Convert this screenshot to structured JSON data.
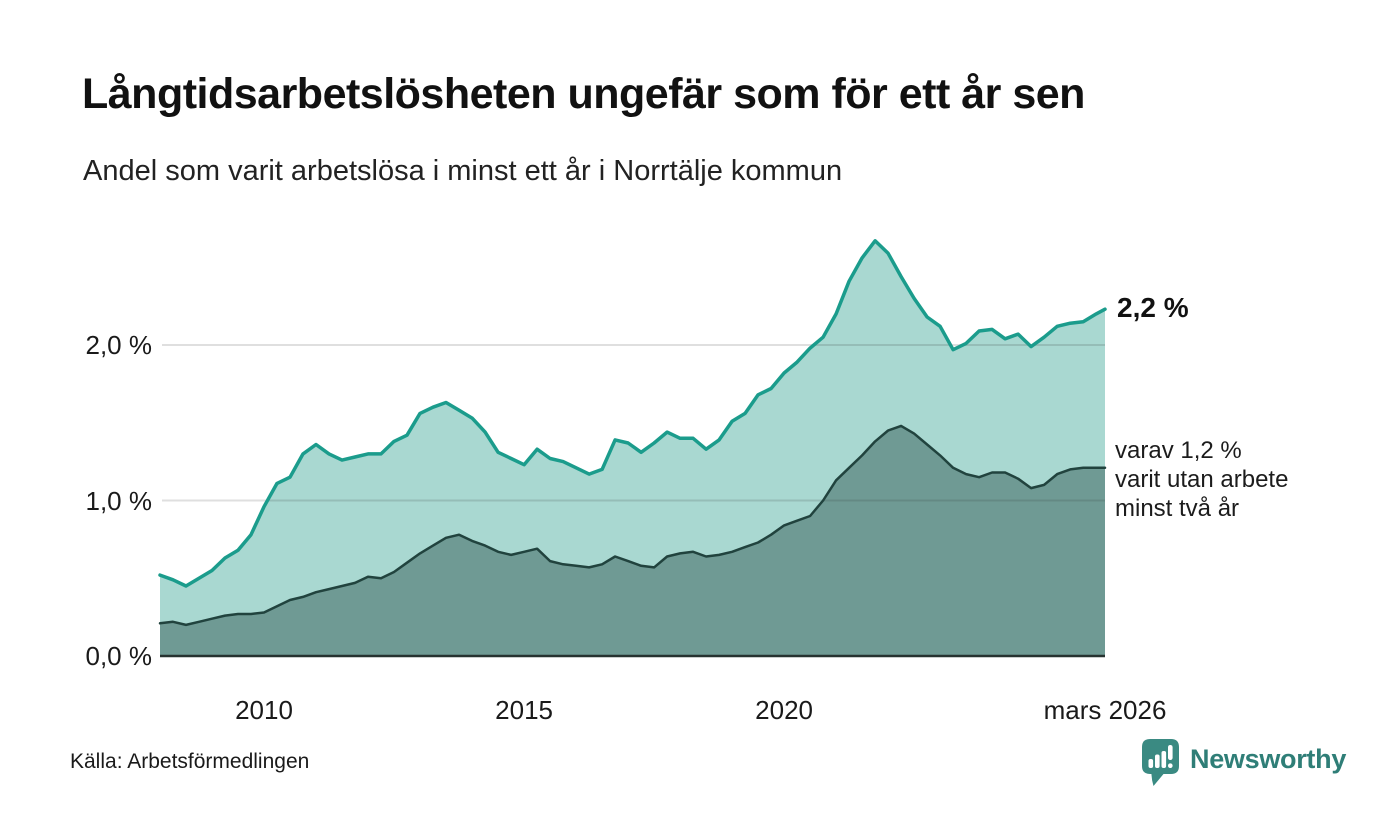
{
  "header": {
    "title": "Långtidsarbetslösheten ungefär som för ett år sen",
    "subtitle": "Andel som varit arbetslösa i minst ett år i Norrtälje kommun"
  },
  "chart_data": {
    "type": "area",
    "title": "Långtidsarbetslösheten ungefär som för ett år sen",
    "subtitle": "Andel som varit arbetslösa i minst ett år i Norrtälje kommun",
    "x_unit": "decimal_year_monthly_series",
    "xlim": [
      2008,
      2026.17
    ],
    "ylim": [
      0,
      2.8
    ],
    "grid": "horizontal",
    "legend_position": "direct-end-labels",
    "x": [
      2008,
      2008.25,
      2008.5,
      2008.75,
      2009,
      2009.25,
      2009.5,
      2009.75,
      2010,
      2010.25,
      2010.5,
      2010.75,
      2011,
      2011.25,
      2011.5,
      2011.75,
      2012,
      2012.25,
      2012.5,
      2012.75,
      2013,
      2013.25,
      2013.5,
      2013.75,
      2014,
      2014.25,
      2014.5,
      2014.75,
      2015,
      2015.25,
      2015.5,
      2015.75,
      2016,
      2016.25,
      2016.5,
      2016.75,
      2017,
      2017.25,
      2017.5,
      2017.75,
      2018,
      2018.25,
      2018.5,
      2018.75,
      2019,
      2019.25,
      2019.5,
      2019.75,
      2020,
      2020.25,
      2020.5,
      2020.75,
      2021,
      2021.25,
      2021.5,
      2021.75,
      2022,
      2022.25,
      2022.5,
      2022.75,
      2023,
      2023.25,
      2023.5,
      2023.75,
      2024,
      2024.25,
      2024.5,
      2024.75,
      2025,
      2025.25,
      2025.5,
      2025.75,
      2026,
      2026.17
    ],
    "series": [
      {
        "name": "Andel arbetslösa minst ett år (%)",
        "line_color": "#1b9c8c",
        "fill_color": "#a9d8d1",
        "line_width": 3.5,
        "values": [
          0.52,
          0.49,
          0.45,
          0.5,
          0.55,
          0.63,
          0.68,
          0.78,
          0.96,
          1.11,
          1.15,
          1.3,
          1.36,
          1.3,
          1.26,
          1.28,
          1.3,
          1.3,
          1.38,
          1.42,
          1.56,
          1.6,
          1.63,
          1.58,
          1.53,
          1.44,
          1.31,
          1.27,
          1.23,
          1.33,
          1.27,
          1.25,
          1.21,
          1.17,
          1.2,
          1.39,
          1.37,
          1.31,
          1.37,
          1.44,
          1.4,
          1.4,
          1.33,
          1.39,
          1.51,
          1.56,
          1.68,
          1.72,
          1.82,
          1.89,
          1.98,
          2.05,
          2.2,
          2.41,
          2.56,
          2.67,
          2.59,
          2.44,
          2.3,
          2.18,
          2.12,
          1.97,
          2.01,
          2.09,
          2.1,
          2.04,
          2.07,
          1.99,
          2.05,
          2.12,
          2.14,
          2.15,
          2.2,
          2.23
        ]
      },
      {
        "name": "varav arbetslösa minst två år (%)",
        "line_color": "#21433e",
        "fill_color": "#6f9a94",
        "line_width": 2.5,
        "values": [
          0.21,
          0.22,
          0.2,
          0.22,
          0.24,
          0.26,
          0.27,
          0.27,
          0.28,
          0.32,
          0.36,
          0.38,
          0.41,
          0.43,
          0.45,
          0.47,
          0.51,
          0.5,
          0.54,
          0.6,
          0.66,
          0.71,
          0.76,
          0.78,
          0.74,
          0.71,
          0.67,
          0.65,
          0.67,
          0.69,
          0.61,
          0.59,
          0.58,
          0.57,
          0.59,
          0.64,
          0.61,
          0.58,
          0.57,
          0.64,
          0.66,
          0.67,
          0.64,
          0.65,
          0.67,
          0.7,
          0.73,
          0.78,
          0.84,
          0.87,
          0.9,
          1.0,
          1.13,
          1.21,
          1.29,
          1.38,
          1.45,
          1.48,
          1.43,
          1.36,
          1.29,
          1.21,
          1.17,
          1.15,
          1.18,
          1.18,
          1.14,
          1.08,
          1.1,
          1.17,
          1.2,
          1.21,
          1.21,
          1.21
        ]
      }
    ],
    "yticks": [
      {
        "value": 0,
        "label": "0,0 %"
      },
      {
        "value": 1,
        "label": "1,0 %"
      },
      {
        "value": 2,
        "label": "2,0 %"
      }
    ],
    "xticks": [
      {
        "value": 2010,
        "label": "2010"
      },
      {
        "value": 2015,
        "label": "2015"
      },
      {
        "value": 2020,
        "label": "2020"
      },
      {
        "value": 2026.17,
        "label": "mars 2026"
      }
    ],
    "annotations": {
      "end_label_total": "2,2 %",
      "end_label_breakdown": "varav 1,2 %\nvarit utan arbete\nminst två år"
    },
    "grid_color": "rgba(40,40,40,0.15)",
    "axis_color": "#263230"
  },
  "footer": {
    "source": "Källa: Arbetsförmedlingen",
    "brand": "Newsworthy",
    "brand_color": "#2f7e77",
    "brand_icon_color": "#3a8a82"
  }
}
